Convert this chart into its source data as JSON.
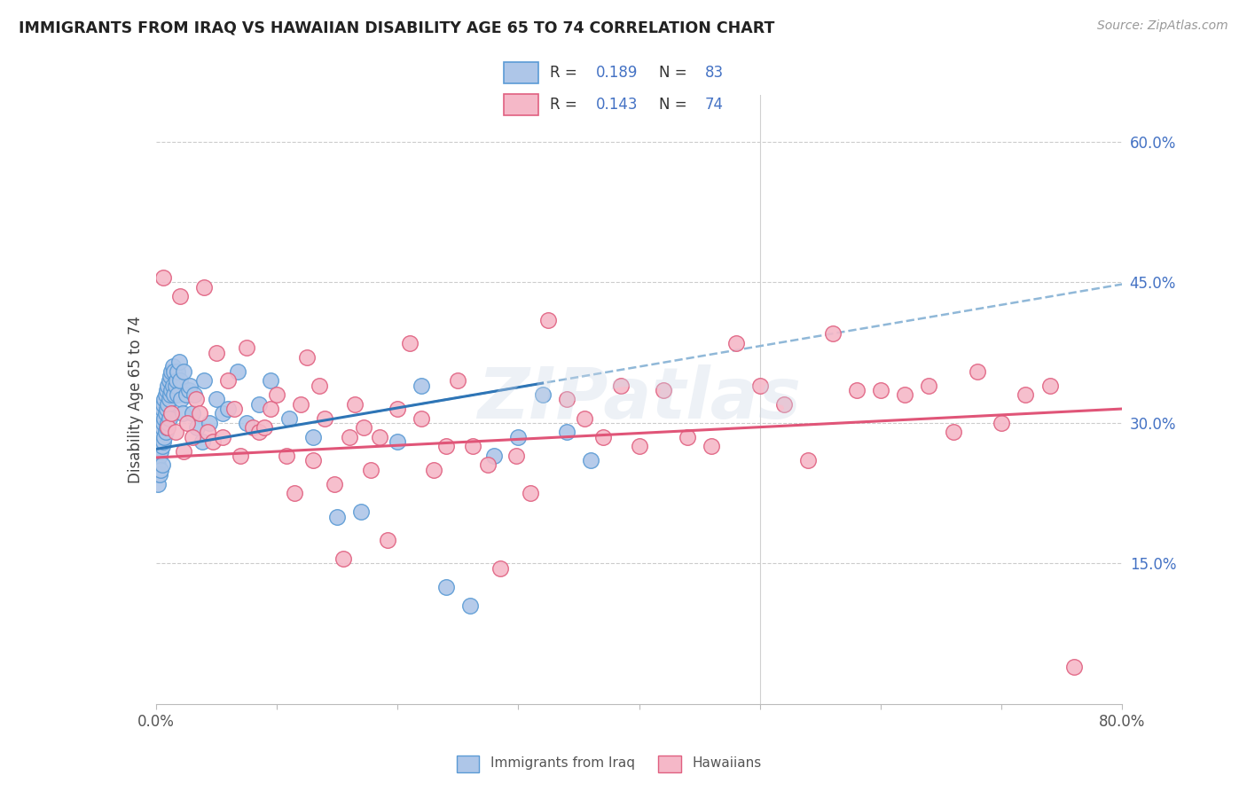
{
  "title": "IMMIGRANTS FROM IRAQ VS HAWAIIAN DISABILITY AGE 65 TO 74 CORRELATION CHART",
  "source": "Source: ZipAtlas.com",
  "ylabel": "Disability Age 65 to 74",
  "x_min": 0.0,
  "x_max": 0.8,
  "y_min": 0.0,
  "y_max": 0.65,
  "x_ticks": [
    0.0,
    0.1,
    0.2,
    0.3,
    0.4,
    0.5,
    0.6,
    0.7,
    0.8
  ],
  "x_tick_labels": [
    "0.0%",
    "",
    "",
    "",
    "",
    "",
    "",
    "",
    "80.0%"
  ],
  "y_ticks_right": [
    0.15,
    0.3,
    0.45,
    0.6
  ],
  "y_tick_labels_right": [
    "15.0%",
    "30.0%",
    "45.0%",
    "60.0%"
  ],
  "iraq_color": "#aec6e8",
  "hawaii_color": "#f5b8c8",
  "iraq_edge_color": "#5b9bd5",
  "hawaii_edge_color": "#e06080",
  "trendline_iraq_color": "#2e75b6",
  "trendline_hawaii_color": "#e05578",
  "trendline_dashed_color": "#90b8d8",
  "legend_r_iraq": "R = 0.189",
  "legend_n_iraq": "N = 83",
  "legend_r_hawaii": "R = 0.143",
  "legend_n_hawaii": "N = 74",
  "watermark": "ZIPatlas",
  "bottom_label_iraq": "Immigrants from Iraq",
  "bottom_label_hawaii": "Hawaiians",
  "iraq_x": [
    0.001,
    0.001,
    0.001,
    0.002,
    0.002,
    0.002,
    0.002,
    0.003,
    0.003,
    0.003,
    0.003,
    0.004,
    0.004,
    0.004,
    0.004,
    0.005,
    0.005,
    0.005,
    0.005,
    0.006,
    0.006,
    0.006,
    0.007,
    0.007,
    0.007,
    0.008,
    0.008,
    0.008,
    0.009,
    0.009,
    0.009,
    0.01,
    0.01,
    0.01,
    0.011,
    0.011,
    0.011,
    0.012,
    0.012,
    0.013,
    0.013,
    0.014,
    0.014,
    0.015,
    0.015,
    0.016,
    0.017,
    0.018,
    0.018,
    0.019,
    0.02,
    0.021,
    0.022,
    0.023,
    0.025,
    0.027,
    0.028,
    0.03,
    0.032,
    0.034,
    0.038,
    0.04,
    0.044,
    0.05,
    0.055,
    0.06,
    0.068,
    0.075,
    0.085,
    0.095,
    0.11,
    0.13,
    0.15,
    0.17,
    0.2,
    0.22,
    0.24,
    0.26,
    0.28,
    0.3,
    0.32,
    0.34,
    0.36
  ],
  "iraq_y": [
    0.285,
    0.265,
    0.245,
    0.29,
    0.275,
    0.255,
    0.235,
    0.305,
    0.285,
    0.265,
    0.245,
    0.31,
    0.29,
    0.27,
    0.25,
    0.315,
    0.295,
    0.275,
    0.255,
    0.32,
    0.3,
    0.28,
    0.325,
    0.305,
    0.285,
    0.33,
    0.31,
    0.29,
    0.335,
    0.315,
    0.295,
    0.34,
    0.32,
    0.3,
    0.345,
    0.325,
    0.305,
    0.35,
    0.33,
    0.355,
    0.335,
    0.36,
    0.34,
    0.355,
    0.33,
    0.34,
    0.345,
    0.355,
    0.33,
    0.365,
    0.345,
    0.325,
    0.31,
    0.355,
    0.33,
    0.335,
    0.34,
    0.31,
    0.33,
    0.295,
    0.28,
    0.345,
    0.3,
    0.325,
    0.31,
    0.315,
    0.355,
    0.3,
    0.32,
    0.345,
    0.305,
    0.285,
    0.2,
    0.205,
    0.28,
    0.34,
    0.125,
    0.105,
    0.265,
    0.285,
    0.33,
    0.29,
    0.26
  ],
  "hawaii_x": [
    0.006,
    0.01,
    0.013,
    0.016,
    0.02,
    0.023,
    0.026,
    0.03,
    0.033,
    0.036,
    0.04,
    0.043,
    0.047,
    0.05,
    0.055,
    0.06,
    0.065,
    0.07,
    0.075,
    0.08,
    0.085,
    0.09,
    0.095,
    0.1,
    0.108,
    0.115,
    0.12,
    0.125,
    0.13,
    0.135,
    0.14,
    0.148,
    0.155,
    0.16,
    0.165,
    0.172,
    0.178,
    0.185,
    0.192,
    0.2,
    0.21,
    0.22,
    0.23,
    0.24,
    0.25,
    0.262,
    0.275,
    0.285,
    0.298,
    0.31,
    0.325,
    0.34,
    0.355,
    0.37,
    0.385,
    0.4,
    0.42,
    0.44,
    0.46,
    0.48,
    0.5,
    0.52,
    0.54,
    0.56,
    0.58,
    0.6,
    0.62,
    0.64,
    0.66,
    0.68,
    0.7,
    0.72,
    0.74,
    0.76
  ],
  "hawaii_y": [
    0.455,
    0.295,
    0.31,
    0.29,
    0.435,
    0.27,
    0.3,
    0.285,
    0.325,
    0.31,
    0.445,
    0.29,
    0.28,
    0.375,
    0.285,
    0.345,
    0.315,
    0.265,
    0.38,
    0.295,
    0.29,
    0.295,
    0.315,
    0.33,
    0.265,
    0.225,
    0.32,
    0.37,
    0.26,
    0.34,
    0.305,
    0.235,
    0.155,
    0.285,
    0.32,
    0.295,
    0.25,
    0.285,
    0.175,
    0.315,
    0.385,
    0.305,
    0.25,
    0.275,
    0.345,
    0.275,
    0.255,
    0.145,
    0.265,
    0.225,
    0.41,
    0.325,
    0.305,
    0.285,
    0.34,
    0.275,
    0.335,
    0.285,
    0.275,
    0.385,
    0.34,
    0.32,
    0.26,
    0.395,
    0.335,
    0.335,
    0.33,
    0.34,
    0.29,
    0.355,
    0.3,
    0.33,
    0.34,
    0.04
  ]
}
